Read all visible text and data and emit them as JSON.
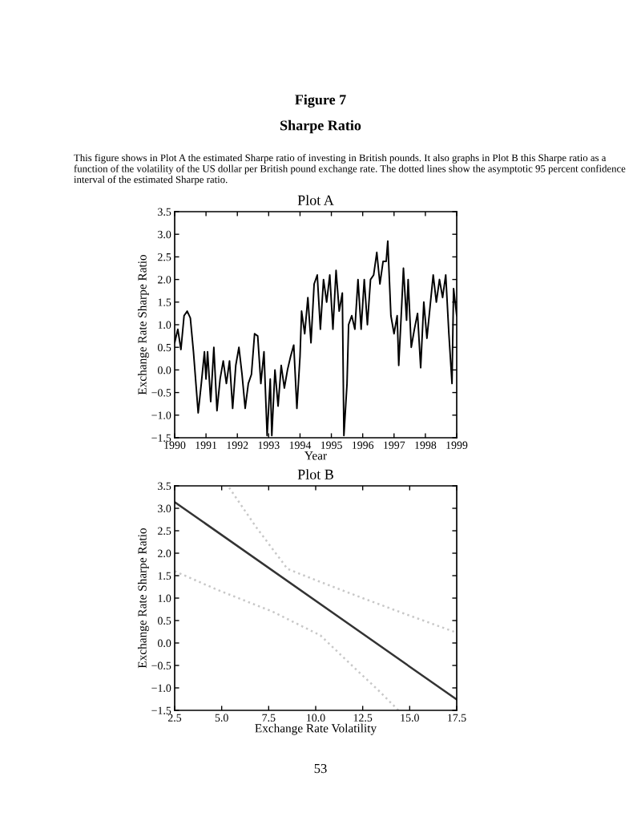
{
  "chart_data": [
    {
      "type": "line",
      "title": "Plot A",
      "xlabel": "Year",
      "ylabel": "Exchange Rate Sharpe Ratio",
      "annotations": [
        "Figure 7",
        "Sharpe Ratio",
        "This figure shows in Plot A the estimated Sharpe ratio of investing in British pounds. It also graphs in Plot B this Sharpe ratio as a function of the volatility of the US dollar per British pound exchange rate. The dotted lines show the asymptotic 95 percent confidence interval of the estimated Sharpe ratio."
      ],
      "xlim": [
        1990,
        1999
      ],
      "xticks": [
        1990,
        1991,
        1992,
        1993,
        1994,
        1995,
        1996,
        1997,
        1998,
        1999
      ],
      "ylim": [
        -1.5,
        3.5
      ],
      "yticks": [
        {
          "value": -1.5,
          "label": "−1.5"
        },
        {
          "value": -1,
          "label": "−1.0"
        },
        {
          "value": -0.5,
          "label": "−0.5"
        },
        {
          "value": 0,
          "label": "0.0"
        },
        0.5,
        {
          "value": 1,
          "label": "1.0"
        },
        1.5,
        {
          "value": 2,
          "label": "2.0"
        },
        2.5,
        {
          "value": 3,
          "label": "3.0"
        },
        3.5
      ],
      "grid": false,
      "legend": false,
      "series": [
        {
          "color": "#000000",
          "line_style": "solid",
          "x": [
            1990.0,
            1990.1,
            1990.2,
            1990.3,
            1990.4,
            1990.5,
            1990.6,
            1990.75,
            1990.85,
            1990.95,
            1991.0,
            1991.05,
            1991.15,
            1991.25,
            1991.35,
            1991.45,
            1991.55,
            1991.65,
            1991.75,
            1991.85,
            1991.95,
            1992.05,
            1992.15,
            1992.25,
            1992.35,
            1992.45,
            1992.55,
            1992.65,
            1992.75,
            1992.85,
            1992.95,
            1993.05,
            1993.1,
            1993.2,
            1993.3,
            1993.4,
            1993.5,
            1993.6,
            1993.7,
            1993.8,
            1993.9,
            1994.0,
            1994.05,
            1994.15,
            1994.25,
            1994.35,
            1994.45,
            1994.55,
            1994.65,
            1994.75,
            1994.85,
            1994.95,
            1995.05,
            1995.15,
            1995.25,
            1995.35,
            1995.4,
            1995.5,
            1995.55,
            1995.65,
            1995.75,
            1995.85,
            1995.95,
            1996.05,
            1996.15,
            1996.25,
            1996.35,
            1996.45,
            1996.55,
            1996.65,
            1996.75,
            1996.8,
            1996.9,
            1997.0,
            1997.1,
            1997.15,
            1997.25,
            1997.3,
            1997.4,
            1997.45,
            1997.55,
            1997.65,
            1997.75,
            1997.85,
            1997.95,
            1998.05,
            1998.15,
            1998.25,
            1998.35,
            1998.45,
            1998.55,
            1998.65,
            1998.75,
            1998.85,
            1998.9,
            1999.0
          ],
          "values": [
            0.6,
            0.9,
            0.45,
            1.2,
            1.3,
            1.15,
            0.4,
            -0.95,
            -0.3,
            0.4,
            -0.2,
            0.4,
            -0.7,
            0.5,
            -0.9,
            -0.2,
            0.2,
            -0.3,
            0.2,
            -0.85,
            0.1,
            0.5,
            -0.1,
            -0.85,
            -0.3,
            -0.1,
            0.8,
            0.75,
            -0.3,
            0.4,
            -1.45,
            -0.2,
            -1.45,
            0.0,
            -0.8,
            0.1,
            -0.4,
            0.0,
            0.3,
            0.55,
            -0.85,
            0.3,
            1.3,
            0.8,
            1.6,
            0.6,
            1.9,
            2.1,
            0.9,
            2.0,
            1.5,
            2.1,
            0.9,
            2.2,
            1.3,
            1.7,
            -1.45,
            -0.3,
            1.0,
            1.2,
            0.9,
            2.0,
            0.9,
            2.0,
            1.0,
            2.0,
            2.1,
            2.6,
            1.9,
            2.4,
            2.4,
            2.85,
            1.2,
            0.8,
            1.2,
            0.1,
            1.5,
            2.25,
            1.1,
            2.0,
            0.5,
            0.9,
            1.25,
            0.05,
            1.5,
            0.7,
            1.4,
            2.1,
            1.5,
            2.0,
            1.6,
            2.1,
            0.8,
            -0.3,
            1.8,
            1.2
          ]
        }
      ]
    },
    {
      "type": "line",
      "title": "Plot B",
      "xlabel": "Exchange Rate Volatility",
      "ylabel": "Exchange Rate Sharpe Ratio",
      "annotations": [
        "53"
      ],
      "xlim": [
        2.5,
        17.5
      ],
      "xticks": [
        2.5,
        {
          "value": 5,
          "label": "5.0"
        },
        7.5,
        {
          "value": 10,
          "label": "10.0"
        },
        12.5,
        {
          "value": 15,
          "label": "15.0"
        },
        17.5
      ],
      "ylim": [
        -1.5,
        3.5
      ],
      "yticks": [
        {
          "value": -1.5,
          "label": "−1.5"
        },
        {
          "value": -1,
          "label": "−1.0"
        },
        {
          "value": -0.5,
          "label": "−0.5"
        },
        {
          "value": 0,
          "label": "0.0"
        },
        0.5,
        {
          "value": 1,
          "label": "1.0"
        },
        1.5,
        {
          "value": 2,
          "label": "2.0"
        },
        2.5,
        {
          "value": 3,
          "label": "3.0"
        },
        3.5
      ],
      "grid": false,
      "legend": false,
      "series": [
        {
          "color": "#333333",
          "line_style": "solid",
          "x": [
            2.5,
            17.5
          ],
          "values": [
            3.14,
            -1.26
          ]
        },
        {
          "color": "#c8c8c8",
          "line_style": "dotted",
          "x": [
            5.4,
            6.8,
            8.5,
            10.25,
            12.5,
            14.8,
            17.5
          ],
          "values": [
            3.46,
            2.6,
            1.65,
            1.36,
            1.0,
            0.64,
            0.23
          ]
        },
        {
          "color": "#c8c8c8",
          "line_style": "dotted",
          "x": [
            2.5,
            4.8,
            7.7,
            10.25,
            11.9,
            13.4,
            14.4
          ],
          "values": [
            1.6,
            1.18,
            0.7,
            0.17,
            -0.49,
            -1.08,
            -1.5
          ]
        }
      ]
    }
  ]
}
